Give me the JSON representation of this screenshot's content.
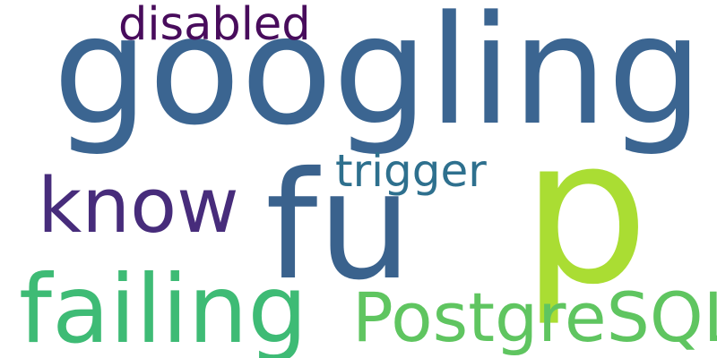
{
  "words": [
    {
      "text": "googling",
      "color": "#3b6591"
    },
    {
      "text": "p",
      "color": "#aadd33"
    },
    {
      "text": "fu",
      "color": "#3a628d"
    },
    {
      "text": "failing",
      "color": "#3ebb75"
    },
    {
      "text": "know",
      "color": "#472c7b"
    },
    {
      "text": "PostgreSQL",
      "color": "#5fc560"
    },
    {
      "text": "disabled",
      "color": "#480c5c"
    },
    {
      "text": "trigger",
      "color": "#2e708e"
    }
  ]
}
